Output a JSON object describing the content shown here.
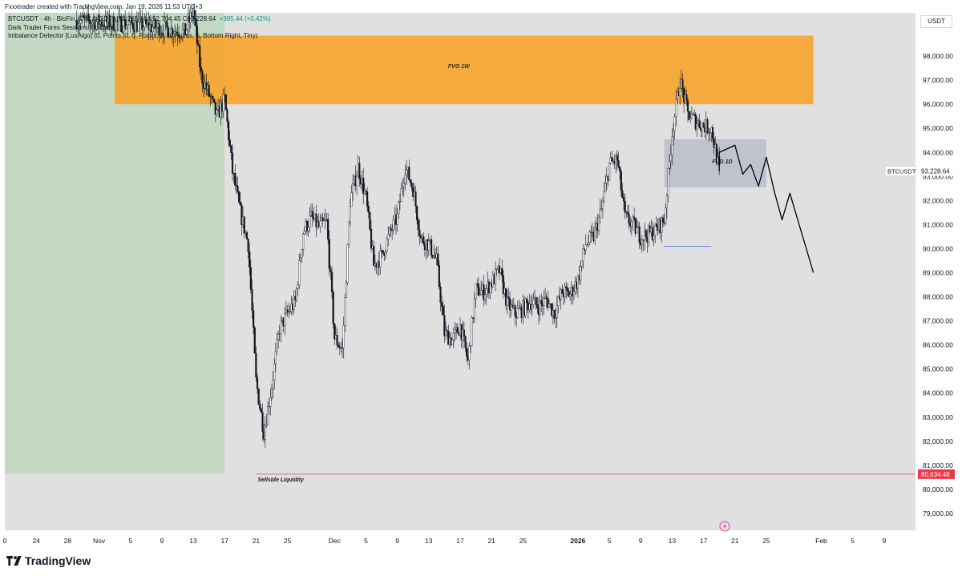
{
  "header": {
    "credit": "Fxxxtrader created with TradingView.com, Jan 19, 2026 11:53 UTC+3"
  },
  "legend": {
    "symbol_line": "BTCUSDT · 4h · BloFin",
    "ohlc": "O92,843.20  H93,265.31  L92,704.45  C93,228.64",
    "change": "+385.44 (+0.42%)",
    "indicator_1": "Dark Trader Forex Sessions Indicator",
    "indicator_2": "Imbalance Detector [LuxAlgo] (0, Points, 0, 0, Points, 0, 0, Points, 5, Bottom Right, Tiny)"
  },
  "currency_button": "USDT",
  "brand": "TradingView",
  "colors": {
    "background": "#e0e0e0",
    "fvg_weekly": "#f7a530",
    "fvg_daily": "#b7bdc9",
    "session_green": "#c3d9c3",
    "liquidity_line": "#f23645",
    "price_label": "#131722"
  },
  "chart_data": {
    "type": "candlestick",
    "symbol": "BTCUSDT",
    "timeframe": "4h",
    "exchange": "BloFin",
    "last_price": {
      "label": "BTCUSDT",
      "value": "93,228.64"
    },
    "y_axis": {
      "ylim": [
        78300,
        99800
      ],
      "ticks": [
        "98,000.00",
        "97,000.00",
        "96,000.00",
        "95,000.00",
        "94,000.00",
        "93,000.00",
        "92,000.00",
        "91,000.00",
        "90,000.00",
        "89,000.00",
        "88,000.00",
        "87,000.00",
        "86,000.00",
        "85,000.00",
        "84,000.00",
        "83,000.00",
        "82,000.00",
        "81,000.00",
        "80,000.00",
        "79,000.00"
      ],
      "tick_values": [
        98000,
        97000,
        96000,
        95000,
        94000,
        93000,
        92000,
        91000,
        90000,
        89000,
        88000,
        87000,
        86000,
        85000,
        84000,
        83000,
        82000,
        81000,
        80000,
        79000
      ]
    },
    "x_axis": {
      "xlim": [
        "2025-10-20",
        "2026-02-13"
      ],
      "ticks": [
        {
          "label": "0",
          "date": "2025-10-20"
        },
        {
          "label": "24",
          "date": "2025-10-24"
        },
        {
          "label": "28",
          "date": "2025-10-28"
        },
        {
          "label": "Nov",
          "date": "2025-11-01"
        },
        {
          "label": "5",
          "date": "2025-11-05"
        },
        {
          "label": "9",
          "date": "2025-11-09"
        },
        {
          "label": "13",
          "date": "2025-11-13"
        },
        {
          "label": "17",
          "date": "2025-11-17"
        },
        {
          "label": "21",
          "date": "2025-11-21"
        },
        {
          "label": "25",
          "date": "2025-11-25"
        },
        {
          "label": "Dec",
          "date": "2025-12-01"
        },
        {
          "label": "5",
          "date": "2025-12-05"
        },
        {
          "label": "9",
          "date": "2025-12-09"
        },
        {
          "label": "13",
          "date": "2025-12-13"
        },
        {
          "label": "17",
          "date": "2025-12-17"
        },
        {
          "label": "21",
          "date": "2025-12-21"
        },
        {
          "label": "25",
          "date": "2025-12-25"
        },
        {
          "label": "2026",
          "date": "2026-01-01"
        },
        {
          "label": "5",
          "date": "2026-01-05"
        },
        {
          "label": "9",
          "date": "2026-01-09"
        },
        {
          "label": "13",
          "date": "2026-01-13"
        },
        {
          "label": "17",
          "date": "2026-01-17"
        },
        {
          "label": "21",
          "date": "2026-01-21"
        },
        {
          "label": "25",
          "date": "2026-01-25"
        },
        {
          "label": "Feb",
          "date": "2026-02-01"
        },
        {
          "label": "5",
          "date": "2026-02-05"
        },
        {
          "label": "9",
          "date": "2026-02-09"
        }
      ]
    },
    "zones": [
      {
        "label": "FVG 1W",
        "x": [
          "2025-11-03",
          "2026-01-31"
        ],
        "y": [
          96000,
          98850
        ]
      },
      {
        "label": "FVG 1D",
        "x": [
          "2026-01-12",
          "2026-01-25"
        ],
        "y": [
          92550,
          94550
        ]
      },
      {
        "label": "",
        "x": [
          "2025-10-20",
          "2025-11-17"
        ],
        "y": [
          80650,
          99800
        ]
      }
    ],
    "sellside_liquidity": {
      "label": "Sellside Liquidity",
      "value": "80,634.48",
      "y": 80634.48,
      "x_start": "2025-11-21"
    },
    "buy_line": {
      "x": [
        "2026-01-12",
        "2026-01-18"
      ],
      "y": 90100
    },
    "path_points": [
      {
        "x": "2025-10-29",
        "y": 99500
      },
      {
        "x": "2025-11-06",
        "y": 99300
      },
      {
        "x": "2025-11-12",
        "y": 99000
      },
      {
        "x": "2025-11-13",
        "y": 99900
      },
      {
        "x": "2025-11-14",
        "y": 97200
      },
      {
        "x": "2025-11-15",
        "y": 96400
      },
      {
        "x": "2025-11-16",
        "y": 95500
      },
      {
        "x": "2025-11-17",
        "y": 96200
      },
      {
        "x": "2025-11-18",
        "y": 93200
      },
      {
        "x": "2025-11-19",
        "y": 91500
      },
      {
        "x": "2025-11-20",
        "y": 90200
      },
      {
        "x": "2025-11-21",
        "y": 84500
      },
      {
        "x": "2025-11-22",
        "y": 82400
      },
      {
        "x": "2025-11-23",
        "y": 84300
      },
      {
        "x": "2025-11-24",
        "y": 86700
      },
      {
        "x": "2025-11-25",
        "y": 87300
      },
      {
        "x": "2025-11-26",
        "y": 87800
      },
      {
        "x": "2025-11-27",
        "y": 90700
      },
      {
        "x": "2025-11-28",
        "y": 91300
      },
      {
        "x": "2025-11-29",
        "y": 90900
      },
      {
        "x": "2025-11-30",
        "y": 91100
      },
      {
        "x": "2025-12-01",
        "y": 86300
      },
      {
        "x": "2025-12-02",
        "y": 85800
      },
      {
        "x": "2025-12-03",
        "y": 92000
      },
      {
        "x": "2025-12-04",
        "y": 93400
      },
      {
        "x": "2025-12-05",
        "y": 92100
      },
      {
        "x": "2025-12-06",
        "y": 89300
      },
      {
        "x": "2025-12-07",
        "y": 89700
      },
      {
        "x": "2025-12-08",
        "y": 90600
      },
      {
        "x": "2025-12-09",
        "y": 91300
      },
      {
        "x": "2025-12-10",
        "y": 93400
      },
      {
        "x": "2025-12-11",
        "y": 92500
      },
      {
        "x": "2025-12-12",
        "y": 90400
      },
      {
        "x": "2025-12-13",
        "y": 90200
      },
      {
        "x": "2025-12-14",
        "y": 89500
      },
      {
        "x": "2025-12-15",
        "y": 86500
      },
      {
        "x": "2025-12-16",
        "y": 86200
      },
      {
        "x": "2025-12-17",
        "y": 86800
      },
      {
        "x": "2025-12-18",
        "y": 85300
      },
      {
        "x": "2025-12-19",
        "y": 88300
      },
      {
        "x": "2025-12-20",
        "y": 88200
      },
      {
        "x": "2025-12-21",
        "y": 88600
      },
      {
        "x": "2025-12-22",
        "y": 89100
      },
      {
        "x": "2025-12-23",
        "y": 87700
      },
      {
        "x": "2025-12-24",
        "y": 87300
      },
      {
        "x": "2025-12-25",
        "y": 87500
      },
      {
        "x": "2025-12-26",
        "y": 87800
      },
      {
        "x": "2025-12-27",
        "y": 87600
      },
      {
        "x": "2025-12-28",
        "y": 87900
      },
      {
        "x": "2025-12-29",
        "y": 87300
      },
      {
        "x": "2025-12-30",
        "y": 88200
      },
      {
        "x": "2025-12-31",
        "y": 88100
      },
      {
        "x": "2026-01-01",
        "y": 88700
      },
      {
        "x": "2026-01-02",
        "y": 90200
      },
      {
        "x": "2026-01-03",
        "y": 90500
      },
      {
        "x": "2026-01-04",
        "y": 91600
      },
      {
        "x": "2026-01-05",
        "y": 93500
      },
      {
        "x": "2026-01-06",
        "y": 93700
      },
      {
        "x": "2026-01-07",
        "y": 91300
      },
      {
        "x": "2026-01-08",
        "y": 91000
      },
      {
        "x": "2026-01-09",
        "y": 90500
      },
      {
        "x": "2026-01-10",
        "y": 90600
      },
      {
        "x": "2026-01-11",
        "y": 90800
      },
      {
        "x": "2026-01-12",
        "y": 91200
      },
      {
        "x": "2026-01-13",
        "y": 94800
      },
      {
        "x": "2026-01-14",
        "y": 97000
      },
      {
        "x": "2026-01-15",
        "y": 95600
      },
      {
        "x": "2026-01-16",
        "y": 95300
      },
      {
        "x": "2026-01-17",
        "y": 95100
      },
      {
        "x": "2026-01-18",
        "y": 95000
      },
      {
        "x": "2026-01-19",
        "y": 93228.64
      }
    ],
    "projection_path": [
      {
        "x": "2026-01-19",
        "y": 93228.64
      },
      {
        "x": "2026-01-19",
        "y": 94000
      },
      {
        "x": "2026-01-21",
        "y": 94300
      },
      {
        "x": "2026-01-22",
        "y": 93100
      },
      {
        "x": "2026-01-23",
        "y": 93500
      },
      {
        "x": "2026-01-24",
        "y": 92600
      },
      {
        "x": "2026-01-25",
        "y": 93800
      },
      {
        "x": "2026-01-26",
        "y": 92400
      },
      {
        "x": "2026-01-27",
        "y": 91200
      },
      {
        "x": "2026-01-28",
        "y": 92300
      },
      {
        "x": "2026-01-31",
        "y": 89000
      }
    ]
  }
}
